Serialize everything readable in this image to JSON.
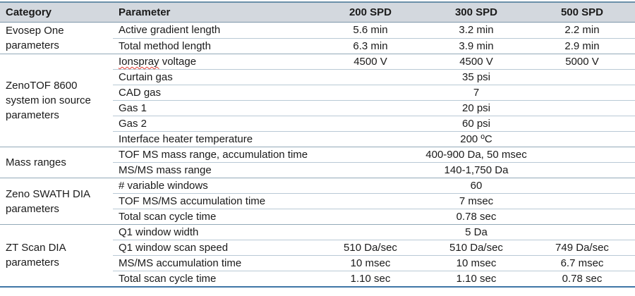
{
  "table": {
    "style": {
      "header_bg": "#d3d8de",
      "top_border": "#6a90a9",
      "bottom_border": "#3f76a6",
      "group_divider": "#93a9b8",
      "row_divider": "#b9c9d5",
      "text_color": "#1a1a1a",
      "spellcheck_underline": "#e0392e"
    },
    "headers": {
      "category": "Category",
      "parameter": "Parameter",
      "spd200": "200 SPD",
      "spd300": "300 SPD",
      "spd500": "500 SPD"
    },
    "groups": [
      {
        "category": "Evosep One parameters",
        "rows": [
          {
            "parameter": "Active gradient length",
            "values": [
              "5.6 min",
              "3.2 min",
              "2.2 min"
            ]
          },
          {
            "parameter": "Total method length",
            "values": [
              "6.3 min",
              "3.9 min",
              "2.9 min"
            ]
          }
        ]
      },
      {
        "category": "ZenoTOF 8600 system ion source parameters",
        "rows": [
          {
            "parameter": "Ionspray voltage",
            "parameter_word": "Ionspray",
            "parameter_rest": " voltage",
            "values": [
              "4500 V",
              "4500 V",
              "5000 V"
            ]
          },
          {
            "parameter": "Curtain gas",
            "span_value": "35 psi"
          },
          {
            "parameter": "CAD gas",
            "span_value": "7"
          },
          {
            "parameter": "Gas 1",
            "span_value": "20 psi"
          },
          {
            "parameter": "Gas 2",
            "span_value": "60 psi"
          },
          {
            "parameter": "Interface heater temperature",
            "span_value": "200 ºC"
          }
        ]
      },
      {
        "category": "Mass ranges",
        "rows": [
          {
            "parameter": "TOF MS mass range, accumulation time",
            "span_value": "400-900 Da, 50 msec"
          },
          {
            "parameter": "MS/MS mass range",
            "span_value": "140-1,750 Da"
          }
        ]
      },
      {
        "category": "Zeno SWATH DIA parameters",
        "rows": [
          {
            "parameter": "# variable windows",
            "span_value": "60"
          },
          {
            "parameter": "TOF MS/MS accumulation time",
            "span_value": "7 msec"
          },
          {
            "parameter": "Total scan cycle time",
            "span_value": "0.78 sec"
          }
        ]
      },
      {
        "category": "ZT Scan DIA parameters",
        "rows": [
          {
            "parameter": "Q1 window width",
            "span_value": "5 Da"
          },
          {
            "parameter": "Q1 window scan speed",
            "values": [
              "510 Da/sec",
              "510 Da/sec",
              "749 Da/sec"
            ]
          },
          {
            "parameter": "MS/MS accumulation time",
            "values": [
              "10 msec",
              "10 msec",
              "6.7 msec"
            ]
          },
          {
            "parameter": "Total scan cycle time",
            "values": [
              "1.10 sec",
              "1.10 sec",
              "0.78 sec"
            ]
          }
        ]
      }
    ]
  }
}
